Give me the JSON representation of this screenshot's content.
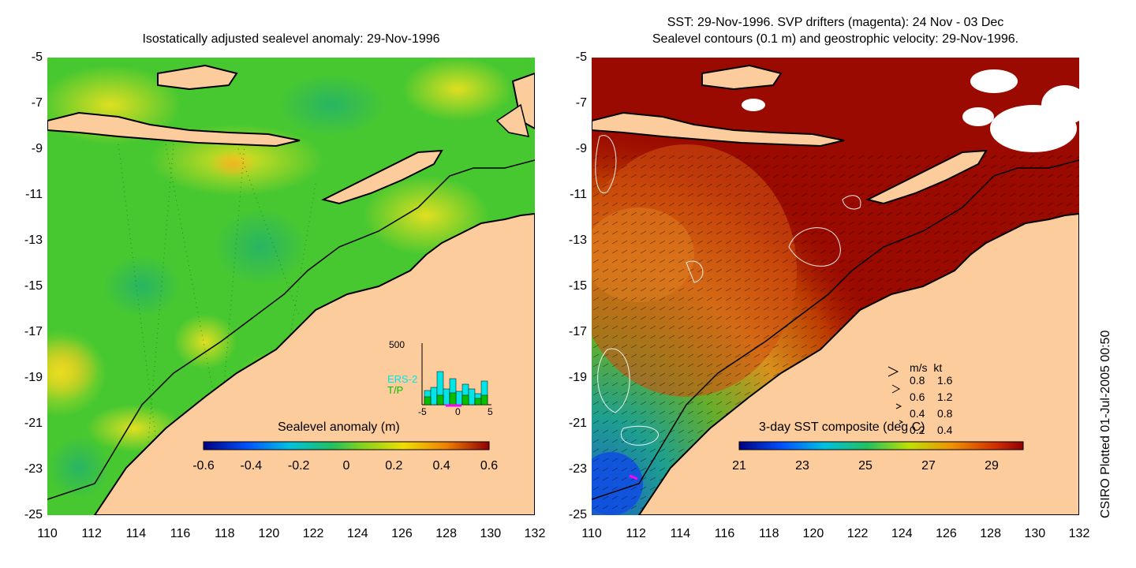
{
  "left_panel": {
    "title": "Isostatically adjusted sealevel anomaly: 29-Nov-1996",
    "y_ticks": [
      "-5",
      "-7",
      "-9",
      "-11",
      "-13",
      "-15",
      "-17",
      "-19",
      "-21",
      "-23",
      "-25"
    ],
    "x_ticks": [
      "110",
      "112",
      "114",
      "116",
      "118",
      "120",
      "122",
      "124",
      "126",
      "128",
      "130",
      "132"
    ],
    "colorbar": {
      "label": "Sealevel anomaly (m)",
      "ticks": [
        "-0.6",
        "-0.4",
        "-0.2",
        "0",
        "0.2",
        "0.4",
        "0.6"
      ],
      "range": [
        -0.6,
        0.6
      ]
    },
    "inset_histogram": {
      "y_max_label": "500",
      "x_ticks": [
        "-5",
        "0",
        "5"
      ],
      "legend_ers2": "ERS-2",
      "legend_tp": "T/P",
      "ers2_color": "#00e5e5",
      "tp_color": "#00c000"
    }
  },
  "right_panel": {
    "title_line1": "SST: 29-Nov-1996. SVP drifters (magenta): 24 Nov - 03 Dec",
    "title_line2": "Sealevel contours (0.1 m) and geostrophic velocity: 29-Nov-1996.",
    "y_ticks": [
      "-5",
      "-7",
      "-9",
      "-11",
      "-13",
      "-15",
      "-17",
      "-19",
      "-21",
      "-23",
      "-25"
    ],
    "x_ticks": [
      "110",
      "112",
      "114",
      "116",
      "118",
      "120",
      "122",
      "124",
      "126",
      "128",
      "130",
      "132"
    ],
    "colorbar": {
      "label": "3-day SST composite (deg C)",
      "ticks": [
        "21",
        "23",
        "25",
        "27",
        "29"
      ],
      "range": [
        21,
        30
      ]
    },
    "velocity_legend": {
      "header_ms": "m/s",
      "header_kt": "kt",
      "rows": [
        {
          "ms": "0.8",
          "kt": "1.6"
        },
        {
          "ms": "0.6",
          "kt": "1.2"
        },
        {
          "ms": "0.4",
          "kt": "0.8"
        },
        {
          "ms": "0.2",
          "kt": "0.4"
        }
      ]
    }
  },
  "side_credit": "CSIRO Plotted 01-Jul-2005 00:50",
  "colors": {
    "land": "#fccc9c",
    "sst_warm": "#9a0a00",
    "sla_green": "#3cc830",
    "coast": "#000000"
  }
}
